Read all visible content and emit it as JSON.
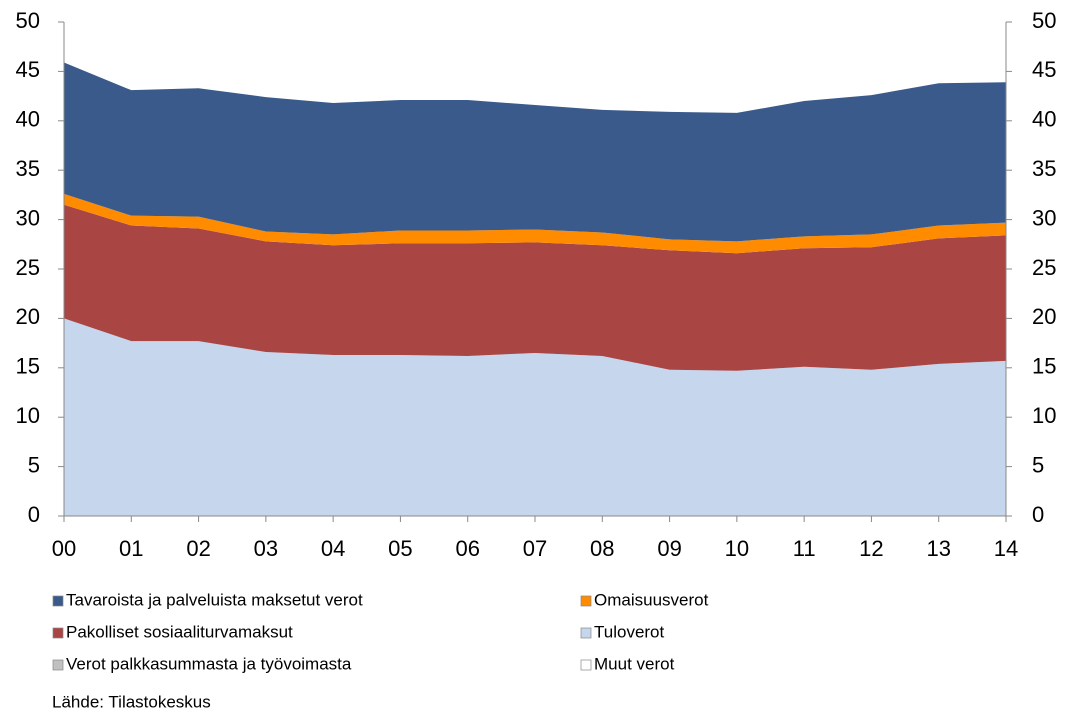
{
  "chart_data": {
    "type": "stacked_area",
    "categories": [
      "00",
      "01",
      "02",
      "03",
      "04",
      "05",
      "06",
      "07",
      "08",
      "09",
      "10",
      "11",
      "12",
      "13",
      "14"
    ],
    "series": [
      {
        "name": "Tavaroista ja palveluista maksetut verot",
        "color": "#3a5a8c",
        "values": [
          13.3,
          12.7,
          13.0,
          13.6,
          13.3,
          13.2,
          13.2,
          12.6,
          12.4,
          12.9,
          13.0,
          13.7,
          14.1,
          14.4,
          14.2
        ]
      },
      {
        "name": "Omaisuusverot",
        "color": "#ff8c00",
        "values": [
          1.1,
          1.0,
          1.2,
          1.0,
          1.1,
          1.3,
          1.3,
          1.3,
          1.3,
          1.1,
          1.2,
          1.2,
          1.3,
          1.3,
          1.3
        ]
      },
      {
        "name": "Pakolliset sosiaaliturvamaksut",
        "color": "#a94543",
        "values": [
          11.5,
          11.7,
          11.4,
          11.2,
          11.1,
          11.3,
          11.4,
          11.2,
          11.2,
          12.1,
          11.9,
          12.0,
          12.4,
          12.7,
          12.7
        ]
      },
      {
        "name": "Tuloverot",
        "color": "#c6d6ec",
        "values": [
          20.0,
          17.7,
          17.7,
          16.6,
          16.3,
          16.3,
          16.2,
          16.5,
          16.2,
          14.8,
          14.7,
          15.1,
          14.8,
          15.4,
          15.7
        ]
      },
      {
        "name": "Verot palkkasummasta ja työvoimasta",
        "color": "#c0c0c0",
        "values": [
          0,
          0,
          0,
          0,
          0,
          0,
          0,
          0,
          0,
          0,
          0,
          0,
          0,
          0,
          0
        ]
      },
      {
        "name": "Muut verot",
        "color": "#ffffff",
        "values": [
          0,
          0,
          0,
          0,
          0,
          0,
          0,
          0,
          0,
          0,
          0,
          0,
          0,
          0,
          0
        ]
      }
    ],
    "ylim": [
      0,
      50
    ],
    "yticks": [
      0,
      5,
      10,
      15,
      20,
      25,
      30,
      35,
      40,
      45,
      50
    ],
    "y2lim": [
      0,
      50
    ],
    "y2ticks": [
      0,
      5,
      10,
      15,
      20,
      25,
      30,
      35,
      40,
      45,
      50
    ],
    "source": "Lähde: Tilastokeskus"
  }
}
